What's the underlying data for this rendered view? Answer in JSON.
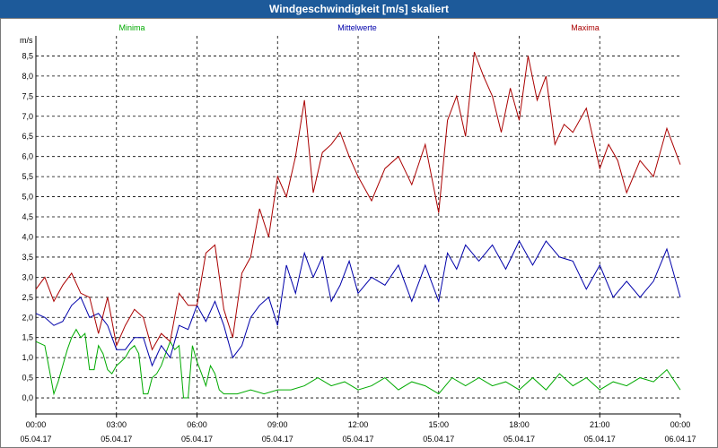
{
  "window": {
    "title": "Windgeschwindigkeit [m/s] skaliert"
  },
  "colors": {
    "minima": "#00aa00",
    "mittelwerte": "#0000aa",
    "maxima": "#aa0000",
    "title_bar": "#1d5a9a"
  },
  "chart_data": {
    "type": "line",
    "title": "Windgeschwindigkeit [m/s] skaliert",
    "ylabel": "m/s",
    "xlabel": "",
    "ylim": [
      -0.4,
      9.0
    ],
    "xlim_hours": [
      0,
      24
    ],
    "y_ticks": [
      "0,0",
      "0,5",
      "1,0",
      "1,5",
      "2,0",
      "2,5",
      "3,0",
      "3,5",
      "4,0",
      "4,5",
      "5,0",
      "5,5",
      "6,0",
      "6,5",
      "7,0",
      "7,5",
      "8,0",
      "8,5"
    ],
    "y_tick_values": [
      0,
      0.5,
      1,
      1.5,
      2,
      2.5,
      3,
      3.5,
      4,
      4.5,
      5,
      5.5,
      6,
      6.5,
      7,
      7.5,
      8,
      8.5
    ],
    "x_ticks": [
      {
        "time": "00:00",
        "date": "05.04.17",
        "hour": 0
      },
      {
        "time": "03:00",
        "date": "05.04.17",
        "hour": 3
      },
      {
        "time": "06:00",
        "date": "05.04.17",
        "hour": 6
      },
      {
        "time": "09:00",
        "date": "05.04.17",
        "hour": 9
      },
      {
        "time": "12:00",
        "date": "05.04.17",
        "hour": 12
      },
      {
        "time": "15:00",
        "date": "05.04.17",
        "hour": 15
      },
      {
        "time": "18:00",
        "date": "05.04.17",
        "hour": 18
      },
      {
        "time": "21:00",
        "date": "05.04.17",
        "hour": 21
      },
      {
        "time": "00:00",
        "date": "06.04.17",
        "hour": 24
      }
    ],
    "grid": true,
    "series": [
      {
        "name": "Minima",
        "color": "#00aa00",
        "x": [
          0,
          0.33,
          0.5,
          0.67,
          0.83,
          1.0,
          1.17,
          1.33,
          1.5,
          1.67,
          1.83,
          2.0,
          2.17,
          2.33,
          2.5,
          2.67,
          2.83,
          3.0,
          3.17,
          3.33,
          3.5,
          3.67,
          3.83,
          4.0,
          4.17,
          4.33,
          4.5,
          4.67,
          4.83,
          5.0,
          5.17,
          5.33,
          5.5,
          5.67,
          5.83,
          6.0,
          6.17,
          6.33,
          6.5,
          6.67,
          6.83,
          7.0,
          7.5,
          8.0,
          8.5,
          9.0,
          9.5,
          10.0,
          10.5,
          11.0,
          11.5,
          12.0,
          12.5,
          13.0,
          13.5,
          14.0,
          14.5,
          15.0,
          15.5,
          16.0,
          16.5,
          17.0,
          17.5,
          18.0,
          18.5,
          19.0,
          19.5,
          20.0,
          20.5,
          21.0,
          21.5,
          22.0,
          22.5,
          23.0,
          23.5,
          24.0
        ],
        "values": [
          1.4,
          1.3,
          0.7,
          0.1,
          0.4,
          0.8,
          1.2,
          1.5,
          1.7,
          1.5,
          1.6,
          0.7,
          0.7,
          1.3,
          1.1,
          0.7,
          0.6,
          0.8,
          0.9,
          1.0,
          1.2,
          1.3,
          1.1,
          0.1,
          0.1,
          0.5,
          0.6,
          0.8,
          1.1,
          1.4,
          1.2,
          1.3,
          0.0,
          0.0,
          1.3,
          0.9,
          0.6,
          0.3,
          0.8,
          0.6,
          0.2,
          0.1,
          0.1,
          0.2,
          0.1,
          0.2,
          0.2,
          0.3,
          0.5,
          0.3,
          0.4,
          0.2,
          0.3,
          0.5,
          0.2,
          0.4,
          0.3,
          0.1,
          0.5,
          0.3,
          0.5,
          0.3,
          0.4,
          0.2,
          0.5,
          0.2,
          0.6,
          0.3,
          0.5,
          0.2,
          0.4,
          0.3,
          0.5,
          0.4,
          0.7,
          0.2
        ]
      },
      {
        "name": "Mittelwerte",
        "color": "#0000aa",
        "x": [
          0,
          0.33,
          0.67,
          1.0,
          1.33,
          1.67,
          2.0,
          2.33,
          2.67,
          3.0,
          3.33,
          3.67,
          4.0,
          4.33,
          4.67,
          5.0,
          5.33,
          5.67,
          6.0,
          6.33,
          6.67,
          7.0,
          7.33,
          7.67,
          8.0,
          8.33,
          8.67,
          9.0,
          9.33,
          9.67,
          10.0,
          10.33,
          10.67,
          11.0,
          11.33,
          11.67,
          12.0,
          12.5,
          13.0,
          13.5,
          14.0,
          14.5,
          15.0,
          15.33,
          15.67,
          16.0,
          16.5,
          17.0,
          17.5,
          18.0,
          18.5,
          19.0,
          19.5,
          20.0,
          20.5,
          21.0,
          21.5,
          22.0,
          22.5,
          23.0,
          23.5,
          24.0
        ],
        "values": [
          2.1,
          2.0,
          1.8,
          1.9,
          2.3,
          2.5,
          2.0,
          2.1,
          1.8,
          1.2,
          1.2,
          1.5,
          1.5,
          0.8,
          1.3,
          1.0,
          1.8,
          1.7,
          2.3,
          1.9,
          2.4,
          1.8,
          1.0,
          1.3,
          2.0,
          2.3,
          2.5,
          1.8,
          3.3,
          2.6,
          3.6,
          3.0,
          3.5,
          2.4,
          2.8,
          3.4,
          2.6,
          3.0,
          2.8,
          3.3,
          2.4,
          3.3,
          2.4,
          3.6,
          3.2,
          3.8,
          3.4,
          3.8,
          3.2,
          3.9,
          3.3,
          3.9,
          3.5,
          3.4,
          2.7,
          3.3,
          2.5,
          2.9,
          2.5,
          2.9,
          3.7,
          2.5
        ],
        "label_values": []
      },
      {
        "name": "Maxima",
        "color": "#aa0000",
        "x": [
          0,
          0.33,
          0.67,
          1.0,
          1.33,
          1.67,
          2.0,
          2.33,
          2.67,
          3.0,
          3.33,
          3.67,
          4.0,
          4.33,
          4.67,
          5.0,
          5.33,
          5.67,
          6.0,
          6.33,
          6.67,
          7.0,
          7.33,
          7.67,
          8.0,
          8.33,
          8.67,
          9.0,
          9.33,
          9.67,
          10.0,
          10.33,
          10.67,
          11.0,
          11.33,
          11.67,
          12.0,
          12.5,
          13.0,
          13.5,
          14.0,
          14.5,
          15.0,
          15.33,
          15.67,
          16.0,
          16.33,
          16.67,
          17.0,
          17.33,
          17.67,
          18.0,
          18.33,
          18.67,
          19.0,
          19.33,
          19.67,
          20.0,
          20.5,
          21.0,
          21.33,
          21.67,
          22.0,
          22.5,
          23.0,
          23.5,
          24.0
        ],
        "values": [
          2.7,
          3.0,
          2.4,
          2.8,
          3.1,
          2.6,
          2.5,
          1.6,
          2.5,
          1.3,
          1.8,
          2.2,
          2.0,
          1.2,
          1.6,
          1.4,
          2.6,
          2.3,
          2.3,
          3.6,
          3.8,
          2.2,
          1.5,
          3.1,
          3.5,
          4.7,
          4.0,
          5.5,
          5.0,
          6.0,
          7.4,
          5.1,
          6.1,
          6.3,
          6.6,
          6.0,
          5.5,
          4.9,
          5.7,
          6.0,
          5.3,
          6.3,
          4.6,
          6.9,
          7.5,
          6.5,
          8.6,
          8.0,
          7.5,
          6.6,
          7.7,
          6.9,
          8.5,
          7.4,
          8.0,
          6.3,
          6.8,
          6.6,
          7.2,
          5.7,
          6.3,
          5.9,
          5.1,
          5.9,
          5.5,
          6.7,
          5.8
        ]
      }
    ],
    "legend": [
      "Minima",
      "Mittelwerte",
      "Maxima"
    ]
  }
}
